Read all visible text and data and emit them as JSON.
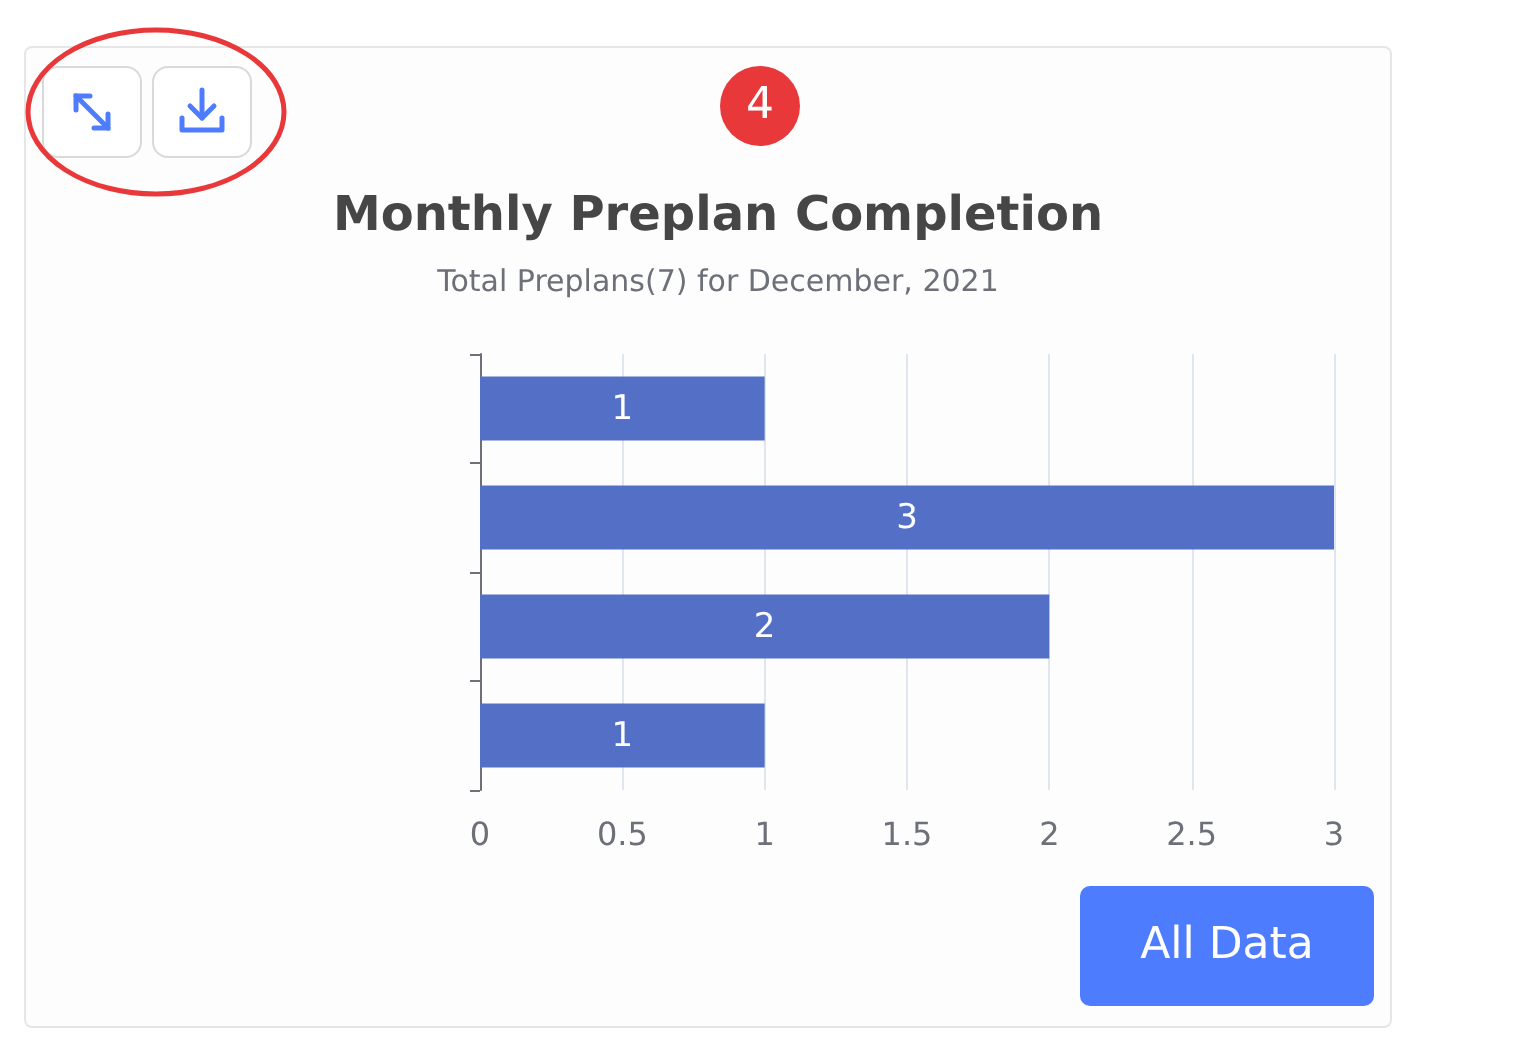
{
  "chart_data": {
    "type": "bar",
    "orientation": "horizontal",
    "title": "Monthly Preplan Completion",
    "subtitle": "Total Preplans(7) for December, 2021",
    "categories": [
      null,
      null,
      null,
      null
    ],
    "values": [
      1,
      3,
      2,
      1
    ],
    "color": "#5470c6",
    "data_labels": true,
    "xlim": [
      0,
      3
    ],
    "xticks": [
      0,
      0.5,
      1,
      1.5,
      2,
      2.5,
      3
    ],
    "grid": "x",
    "annotations": [
      "4",
      "All Data"
    ]
  }
}
